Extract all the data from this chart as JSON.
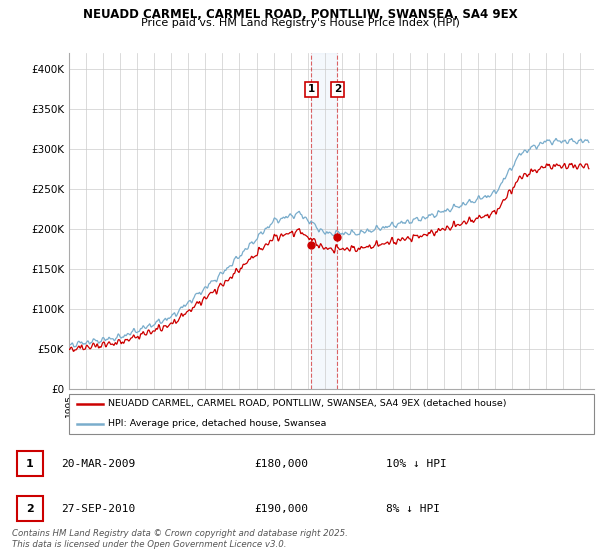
{
  "title": "NEUADD CARMEL, CARMEL ROAD, PONTLLIW, SWANSEA, SA4 9EX",
  "subtitle": "Price paid vs. HM Land Registry's House Price Index (HPI)",
  "ylabel_ticks": [
    "£0",
    "£50K",
    "£100K",
    "£150K",
    "£200K",
    "£250K",
    "£300K",
    "£350K",
    "£400K"
  ],
  "ytick_values": [
    0,
    50000,
    100000,
    150000,
    200000,
    250000,
    300000,
    350000,
    400000
  ],
  "ylim": [
    0,
    420000
  ],
  "xlim_start": 1995.0,
  "xlim_end": 2025.8,
  "legend1_label": "NEUADD CARMEL, CARMEL ROAD, PONTLLIW, SWANSEA, SA4 9EX (detached house)",
  "legend2_label": "HPI: Average price, detached house, Swansea",
  "legend1_color": "#cc0000",
  "legend2_color": "#7aadcc",
  "purchase1_date": "20-MAR-2009",
  "purchase1_price": "£180,000",
  "purchase1_pct": "10% ↓ HPI",
  "purchase1_x": 2009.22,
  "purchase1_y": 180000,
  "purchase2_date": "27-SEP-2010",
  "purchase2_price": "£190,000",
  "purchase2_pct": "8% ↓ HPI",
  "purchase2_x": 2010.75,
  "purchase2_y": 190000,
  "footer": "Contains HM Land Registry data © Crown copyright and database right 2025.\nThis data is licensed under the Open Government Licence v3.0.",
  "bg_color": "#ffffff",
  "grid_color": "#cccccc"
}
